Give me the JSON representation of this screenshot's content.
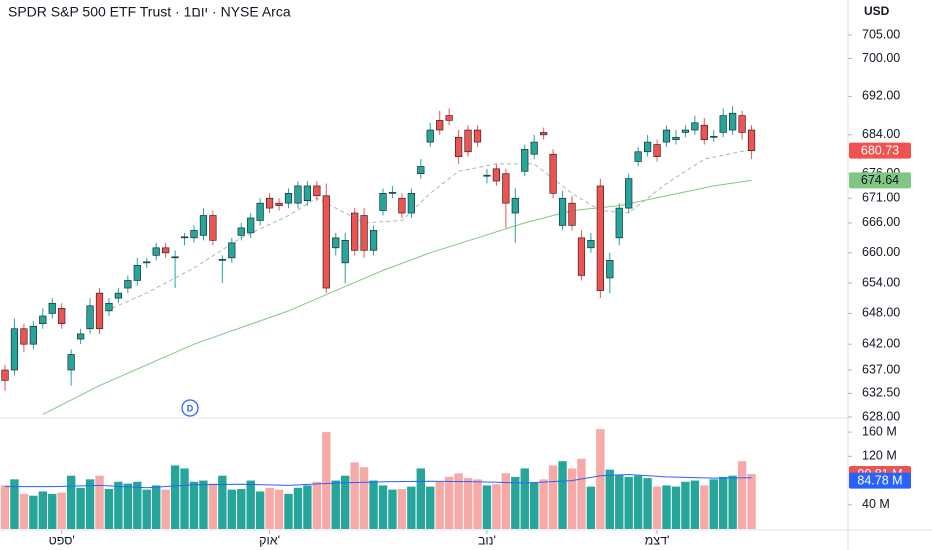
{
  "chart_data": {
    "type": "candlestick",
    "title": "SPDR S&P 500 ETF Trust · 1יום · NYSE Arca",
    "currency": "USD",
    "indicator_badge": "D",
    "log_scale": true,
    "up_color": "#26a69a",
    "down_color": "#ef5350",
    "open": [
      637,
      637,
      645,
      642,
      646,
      648,
      649,
      637,
      643,
      645,
      652,
      648.5,
      651,
      653,
      654.5,
      658,
      659.5,
      661,
      659,
      663,
      663,
      663.5,
      667.5,
      658.5,
      659,
      663.5,
      664,
      666.5,
      671,
      670,
      670,
      670,
      670.5,
      673.5,
      671.5,
      661,
      658,
      668,
      667.5,
      660.5,
      668.5,
      672,
      671,
      668,
      676,
      682.5,
      687,
      688,
      683.5,
      685,
      685,
      675.5,
      677,
      676,
      668,
      676.5,
      680,
      684.5,
      680,
      665.5,
      670,
      663,
      661,
      673.5,
      655,
      663,
      669,
      678.5,
      680.5,
      682,
      682.5,
      683,
      684.5,
      685,
      686,
      683.5,
      684.5,
      685,
      688,
      685
    ],
    "high": [
      638,
      647,
      646,
      646.5,
      649,
      651,
      650,
      641,
      645,
      651,
      653,
      651,
      653,
      655.5,
      659,
      659,
      662,
      662,
      660.5,
      664,
      665.5,
      669,
      668.5,
      659.5,
      663,
      666,
      668,
      671,
      672,
      671,
      673,
      674.5,
      674.5,
      674.5,
      674,
      664,
      664,
      669,
      669,
      665.5,
      673,
      673.5,
      672,
      673,
      679,
      686.5,
      689,
      689.5,
      685,
      686,
      686,
      677,
      678,
      677,
      673,
      682,
      684,
      685.5,
      681,
      672.5,
      671.5,
      664.5,
      664,
      675,
      660,
      670,
      676,
      681.5,
      684,
      683,
      686,
      685,
      686,
      688,
      687.5,
      685,
      689.5,
      690,
      689,
      686
    ],
    "low": [
      633,
      636,
      640.5,
      641,
      645,
      647,
      645,
      634,
      642,
      644,
      644,
      647.5,
      650,
      652,
      653.5,
      657,
      658.5,
      659,
      653,
      661.5,
      662,
      662.5,
      661.5,
      654,
      658,
      662.5,
      663,
      665.5,
      668,
      668.5,
      669,
      669,
      669.5,
      670.5,
      652,
      659.5,
      654,
      659.5,
      659,
      659.5,
      667.5,
      671,
      667,
      667,
      675,
      681.5,
      684,
      686,
      678,
      679.5,
      681.5,
      674,
      673.5,
      665,
      662,
      675.5,
      679,
      683,
      671,
      664.5,
      664.5,
      654.5,
      660,
      651,
      652,
      661.5,
      668,
      677.5,
      679.5,
      678.5,
      681.5,
      682,
      683.5,
      684,
      682,
      682.5,
      683.5,
      684,
      683,
      679
    ],
    "close": [
      635,
      645,
      642,
      645.5,
      647.5,
      650,
      646,
      640,
      644,
      649.5,
      645,
      650,
      652,
      654.5,
      657.5,
      658.2,
      661,
      660,
      659.2,
      663.2,
      664.5,
      667.5,
      662.5,
      658.7,
      662,
      665,
      667,
      670,
      669,
      669.5,
      672,
      673.5,
      673.5,
      671.5,
      653,
      663,
      662.5,
      660.5,
      660.5,
      664.5,
      672,
      672.2,
      668,
      672,
      677.5,
      685,
      685,
      687,
      679.5,
      680.5,
      682.5,
      675.7,
      674.5,
      670,
      671,
      681,
      682.5,
      684,
      672,
      671,
      665.5,
      655.5,
      662.5,
      652.5,
      658.5,
      669,
      675,
      680.5,
      682.5,
      679.5,
      685,
      683.5,
      685,
      686.5,
      683,
      683.7,
      688,
      688.5,
      684.5,
      680.73
    ],
    "volume": [
      72,
      82,
      58,
      55,
      62,
      58,
      60,
      88,
      68,
      82,
      88,
      66,
      78,
      75,
      78,
      65,
      72,
      65,
      105,
      100,
      78,
      80,
      75,
      88,
      65,
      66,
      80,
      62,
      68,
      65,
      58,
      68,
      72,
      78,
      160,
      80,
      88,
      110,
      102,
      80,
      72,
      65,
      66,
      70,
      100,
      70,
      78,
      86,
      92,
      84,
      82,
      72,
      74,
      92,
      86,
      100,
      76,
      82,
      105,
      112,
      100,
      116,
      70,
      165,
      98,
      90,
      86,
      88,
      84,
      70,
      72,
      70,
      78,
      80,
      72,
      82,
      86,
      88,
      112,
      90.81
    ],
    "volume_label": "90.81 M",
    "overlays": [
      {
        "color": "#b0b3b8",
        "dash": true,
        "x": [
          10,
          15,
          20,
          25,
          30,
          33,
          38,
          42,
          45,
          48,
          52,
          56,
          60,
          63,
          66,
          70,
          74,
          79
        ],
        "values": [
          648,
          652,
          657,
          663,
          667.5,
          671,
          666,
          666.5,
          672,
          676.5,
          678,
          678,
          672,
          668.5,
          668,
          674,
          679,
          681
        ]
      },
      {
        "color": "#81c784",
        "dash": false,
        "x": [
          4,
          10,
          20,
          30,
          35,
          40,
          45,
          50,
          55,
          60,
          65,
          70,
          75,
          79
        ],
        "values": [
          628.5,
          634,
          642,
          648.5,
          652.5,
          656.5,
          660,
          663,
          666,
          668.5,
          669.5,
          671.5,
          673.5,
          674.64
        ]
      }
    ],
    "volume_ma": {
      "color": "#2962ff",
      "x": [
        0,
        5,
        10,
        15,
        20,
        25,
        30,
        35,
        40,
        45,
        50,
        55,
        60,
        63,
        66,
        70,
        75,
        79
      ],
      "values": [
        70,
        70,
        72,
        68,
        73,
        74,
        72,
        76,
        78,
        79,
        78,
        76,
        80,
        88,
        90,
        86,
        84,
        84.78
      ],
      "label": "84.78 M"
    },
    "ylim": [
      628,
      712.5
    ],
    "yticks": [
      {
        "value": 705,
        "label": "705.00"
      },
      {
        "value": 700,
        "label": "700.00"
      },
      {
        "value": 692,
        "label": "692.00"
      },
      {
        "value": 684,
        "label": "684.00"
      },
      {
        "value": 676,
        "label": "676.00"
      },
      {
        "value": 671,
        "label": "671.00"
      },
      {
        "value": 666,
        "label": "666.00"
      },
      {
        "value": 660,
        "label": "660.00"
      },
      {
        "value": 654,
        "label": "654.00"
      },
      {
        "value": 648,
        "label": "648.00"
      },
      {
        "value": 642,
        "label": "642.00"
      },
      {
        "value": 637,
        "label": "637.00"
      },
      {
        "value": 632.5,
        "label": "632.50"
      },
      {
        "value": 628,
        "label": "628.00"
      }
    ],
    "vlim": [
      0,
      180
    ],
    "vticks": [
      {
        "value": 160,
        "label": "160 M"
      },
      {
        "value": 120,
        "label": "120 M"
      },
      {
        "value": 40,
        "label": "40 M"
      }
    ],
    "xticks": [
      {
        "value": 6,
        "label": "ספט'"
      },
      {
        "value": 28,
        "label": "אוק'"
      },
      {
        "value": 51,
        "label": "נוב'"
      },
      {
        "value": 69,
        "label": "דצמ'"
      }
    ]
  }
}
